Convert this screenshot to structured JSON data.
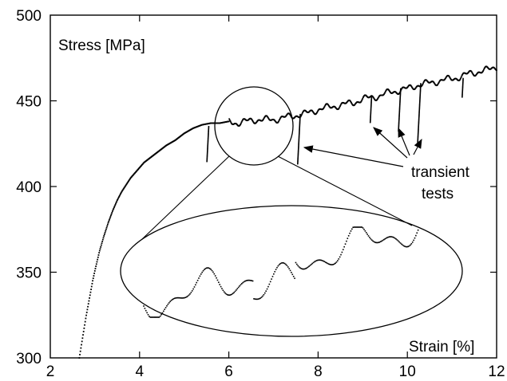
{
  "chart_data": {
    "type": "scatter",
    "title": "",
    "xlabel": "Strain [%]",
    "ylabel": "Stress [MPa]",
    "xlim": [
      2,
      12
    ],
    "ylim": [
      300,
      500
    ],
    "x_ticks": [
      2,
      4,
      6,
      8,
      10,
      12
    ],
    "y_ticks": [
      300,
      350,
      400,
      450,
      500
    ],
    "x_tick_labels": [
      "2",
      "4",
      "6",
      "8",
      "10",
      "12"
    ],
    "y_tick_labels": [
      "300",
      "350",
      "400",
      "450",
      "500"
    ],
    "grid": false,
    "legend": "none",
    "colors": {
      "axis": "#000000",
      "data": "#000000",
      "background": "#ffffff"
    },
    "series": [
      {
        "x": [
          2.65,
          2.7,
          2.75,
          2.8,
          2.85,
          2.9,
          2.95,
          3.0,
          3.1,
          3.2,
          3.3,
          3.4,
          3.5,
          3.6,
          3.7,
          3.8,
          3.9,
          4.0,
          4.1,
          4.2,
          4.3,
          4.4,
          4.6,
          4.8,
          5.0,
          5.2,
          5.4,
          5.6,
          5.8,
          6.0,
          6.2,
          6.4,
          6.6,
          6.8,
          7.0,
          7.2,
          7.4,
          7.6,
          7.8,
          8.0,
          8.2,
          8.4,
          8.6,
          8.8,
          9.0,
          9.2,
          9.4,
          9.6,
          9.8,
          10.0,
          10.2,
          10.4,
          10.6,
          10.8,
          11.0,
          11.2,
          11.4,
          11.6,
          11.8,
          12.0
        ],
        "y": [
          300,
          308,
          316,
          324,
          331,
          338,
          345,
          351,
          362,
          371,
          379,
          386,
          392,
          397,
          401,
          405,
          408,
          411,
          414,
          416,
          418,
          420,
          424,
          427,
          431,
          434,
          436,
          437,
          437,
          438,
          437,
          438,
          439,
          439,
          439,
          440,
          441,
          442,
          443,
          445,
          446,
          447,
          448,
          449,
          451,
          452,
          453,
          455,
          456,
          457,
          459,
          460,
          461,
          462,
          463,
          464,
          466,
          467,
          468,
          470
        ]
      }
    ],
    "transient_tests": [
      {
        "x": 5.55,
        "y_top": 435,
        "y_bottom": 414
      },
      {
        "x": 7.6,
        "y_top": 442,
        "y_bottom": 413
      },
      {
        "x": 9.2,
        "y_top": 453,
        "y_bottom": 437
      },
      {
        "x": 9.85,
        "y_top": 457,
        "y_bottom": 432
      },
      {
        "x": 10.3,
        "y_top": 460,
        "y_bottom": 425
      },
      {
        "x": 11.25,
        "y_top": 463,
        "y_bottom": 452
      }
    ],
    "annotations": {
      "stress_label": "Stress [MPa]",
      "strain_label": "Strain [%]",
      "transient_line1": "transient",
      "transient_line2": "tests"
    }
  }
}
